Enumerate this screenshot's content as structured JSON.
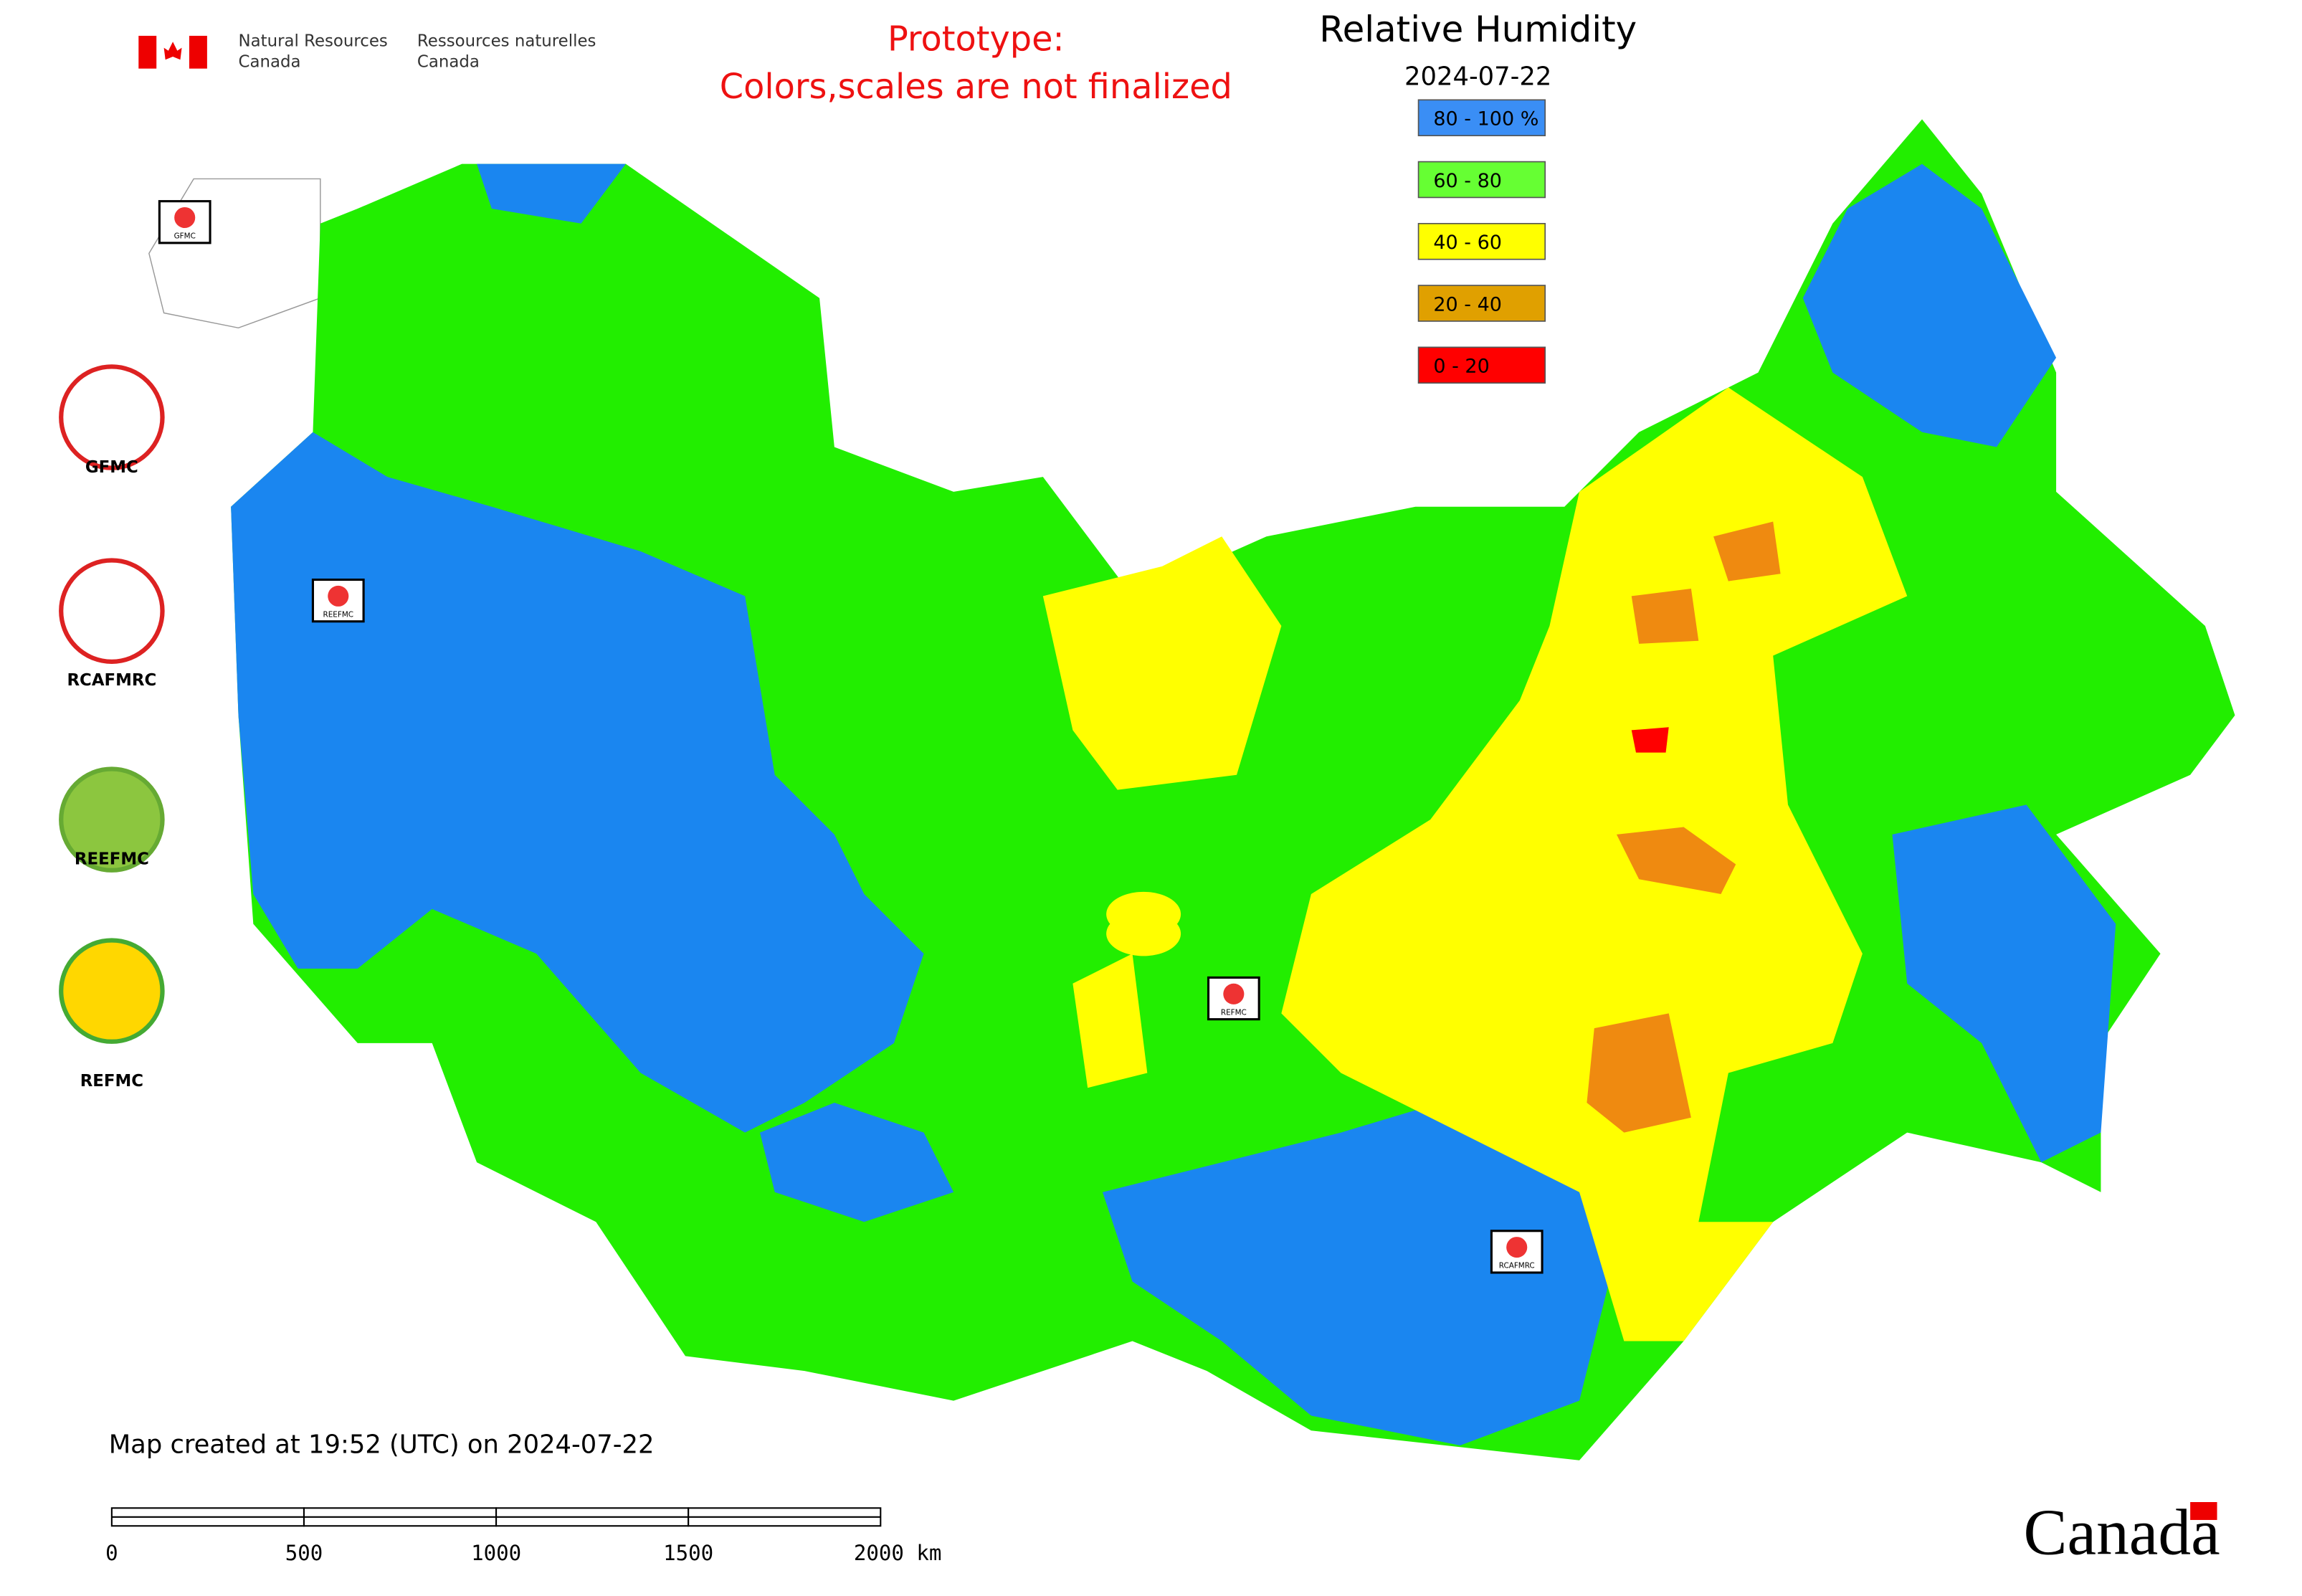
{
  "header": {
    "department_en": [
      "Natural Resources",
      "Canada"
    ],
    "department_fr": [
      "Ressources naturelles",
      "Canada"
    ],
    "prototype": [
      "Prototype:",
      "Colors,scales are not finalized"
    ]
  },
  "legend": {
    "title": "Relative Humidity",
    "date": "2024-07-22",
    "entries": [
      {
        "label": "80 - 100 %",
        "color": "#3a8ef5"
      },
      {
        "label": "60 - 80",
        "color": "#66ff33"
      },
      {
        "label": "40 - 60",
        "color": "#ffff00"
      },
      {
        "label": "20 - 40",
        "color": "#e0a000"
      },
      {
        "label": "0 - 20",
        "color": "#ff0000"
      }
    ]
  },
  "logos": [
    "GFMC",
    "RCAFMRC",
    "REEFMC",
    "REFMC"
  ],
  "map_markers": [
    "GFMC",
    "REEFMC",
    "REFMC",
    "RCAFMRC"
  ],
  "footer": {
    "created": "Map created at 19:52 (UTC) on 2024-07-22",
    "scale_bar": [
      "0",
      "500",
      "1000",
      "1500",
      "2000 km"
    ],
    "wordmark": "Canada"
  }
}
